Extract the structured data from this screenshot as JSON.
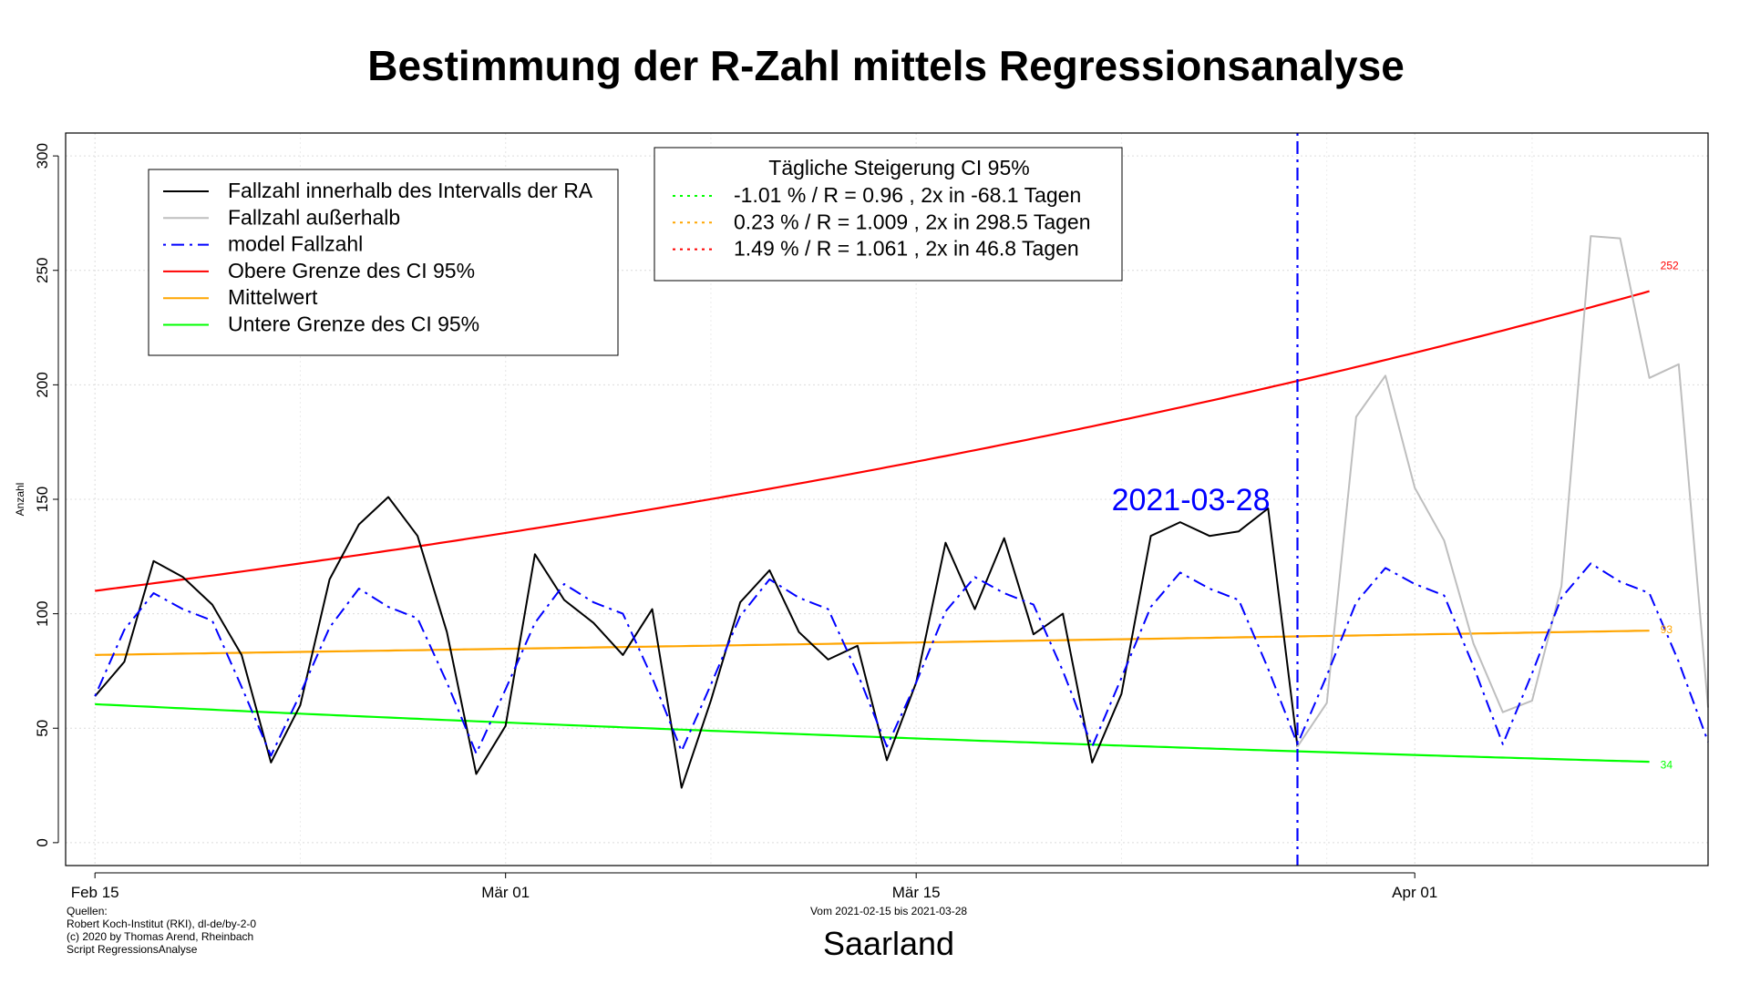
{
  "chart_data": {
    "type": "line",
    "title": "Bestimmung der R-Zahl mittels Regressionsanalyse",
    "ylabel": "Anzahl",
    "subtitle": "Saarland",
    "period_text": "Vom 2021-02-15 bis 2021-03-28",
    "sources": [
      "Quellen:",
      "Robert Koch-Institut (RKI), dl-de/by-2-0",
      "(c) 2020 by Thomas Arend, Rheinbach",
      "Script RegressionsAnalyse"
    ],
    "x_start": "2021-02-15",
    "x_end": "2021-04-09",
    "xlim": [
      "2021-02-14",
      "2021-04-11"
    ],
    "ylim": [
      -10,
      310
    ],
    "y_ticks": [
      0,
      50,
      100,
      150,
      200,
      250,
      300
    ],
    "x_ticks": [
      {
        "date": "2021-02-15",
        "label": "Feb 15"
      },
      {
        "date": "2021-03-01",
        "label": "Mär 01"
      },
      {
        "date": "2021-03-15",
        "label": "Mär 15"
      },
      {
        "date": "2021-04-01",
        "label": "Apr 01"
      }
    ],
    "grid": true,
    "cutoff": {
      "date": "2021-03-28",
      "label": "2021-03-28",
      "color": "#0000ff"
    },
    "series": [
      {
        "name": "Fallzahl innerhalb des Intervalls der RA",
        "color": "#000000",
        "style": "solid",
        "start": "2021-02-15",
        "values": [
          64,
          79,
          123,
          116,
          104,
          82,
          35,
          60,
          115,
          139,
          151,
          134,
          92,
          30,
          51,
          126,
          106,
          96,
          82,
          102,
          24,
          62,
          105,
          119,
          92,
          80,
          86,
          36,
          70,
          131,
          102,
          133,
          91,
          100,
          35,
          65,
          134,
          140,
          134,
          136,
          146,
          42
        ]
      },
      {
        "name": "Fallzahl außerhalb",
        "color": "#bebebe",
        "style": "solid",
        "start": "2021-03-28",
        "values": [
          42,
          61,
          186,
          204,
          155,
          132,
          87,
          57,
          62,
          112,
          265,
          264,
          203,
          209,
          59
        ]
      },
      {
        "name": "model Fallzahl",
        "color": "#0000ff",
        "style": "dotdash",
        "start": "2021-02-15",
        "values": [
          64,
          93,
          109,
          102,
          97,
          68,
          38,
          65,
          94,
          111,
          103,
          98,
          70,
          39,
          67,
          96,
          113,
          105,
          100,
          72,
          40,
          69,
          99,
          115,
          107,
          102,
          74,
          42,
          70,
          101,
          116,
          109,
          104,
          75,
          42,
          72,
          103,
          118,
          111,
          106,
          76,
          43,
          73,
          105,
          120,
          113,
          108,
          77,
          43,
          74,
          107,
          122,
          114,
          109,
          79,
          44
        ]
      },
      {
        "name": "Obere Grenze des CI 95%",
        "color": "#ff0000",
        "style": "solid",
        "curve": {
          "start": "2021-02-15",
          "end": "2021-04-09",
          "y0": 110,
          "growth": 0.0149
        }
      },
      {
        "name": "Mittelwert",
        "color": "#ffa500",
        "style": "solid",
        "curve": {
          "start": "2021-02-15",
          "end": "2021-04-09",
          "y0": 82,
          "growth": 0.0023
        }
      },
      {
        "name": "Untere Grenze des CI 95%",
        "color": "#00ff00",
        "style": "solid",
        "curve": {
          "start": "2021-02-15",
          "end": "2021-04-09",
          "y0": 60.5,
          "growth": -0.0101
        }
      }
    ],
    "end_labels": [
      {
        "text": "252",
        "value": 252,
        "color": "#ff0000"
      },
      {
        "text": "93",
        "value": 93,
        "color": "#ffa500"
      },
      {
        "text": "34",
        "value": 34,
        "color": "#00ff00"
      }
    ],
    "legend_series": {
      "placement": "top-left",
      "entries": [
        {
          "label": "Fallzahl innerhalb des Intervalls der RA",
          "color": "#000000",
          "style": "solid"
        },
        {
          "label": "Fallzahl außerhalb",
          "color": "#bebebe",
          "style": "solid"
        },
        {
          "label": "model Fallzahl",
          "color": "#0000ff",
          "style": "dotdash"
        },
        {
          "label": "Obere Grenze des CI 95%",
          "color": "#ff0000",
          "style": "solid"
        },
        {
          "label": "Mittelwert",
          "color": "#ffa500",
          "style": "solid"
        },
        {
          "label": "Untere Grenze des CI 95%",
          "color": "#00ff00",
          "style": "solid"
        }
      ]
    },
    "legend_ci": {
      "placement": "top-center",
      "title": "Tägliche Steigerung CI  95%",
      "entries": [
        {
          "label": "-1.01 % / R = 0.96 , 2x in -68.1 Tagen",
          "color": "#00ff00",
          "style": "dotted"
        },
        {
          "label": "0.23 % / R = 1.009 , 2x in 298.5 Tagen",
          "color": "#ffa500",
          "style": "dotted"
        },
        {
          "label": "1.49 % / R = 1.061 , 2x in 46.8 Tagen",
          "color": "#ff0000",
          "style": "dotted"
        }
      ]
    }
  }
}
